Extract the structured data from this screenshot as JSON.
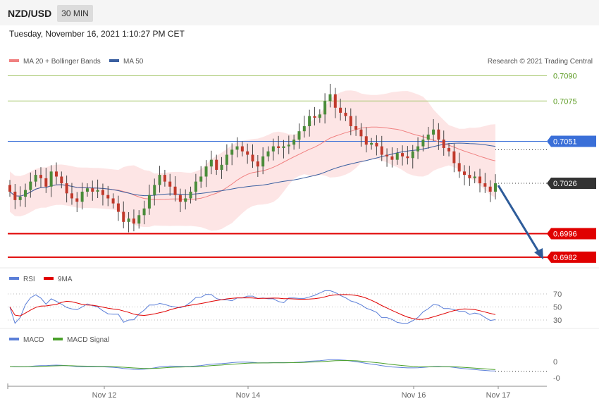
{
  "header": {
    "pair": "NZD/USD",
    "timeframe": "30 MIN",
    "timestamp": "Tuesday, November 16, 2021 1:10:27 PM CET"
  },
  "legend": {
    "ma20": "MA 20 + Bollinger Bands",
    "ma50": "MA 50",
    "credit": "Research © 2021 Trading Central"
  },
  "rsi_legend": {
    "rsi": "RSI",
    "ma": "9MA"
  },
  "macd_legend": {
    "macd": "MACD",
    "signal": "MACD Signal"
  },
  "colors": {
    "up": "#4a8c3a",
    "down": "#c0392b",
    "ma20": "#f08080",
    "band": "#fde0e0",
    "ma50": "#3a5fa0",
    "blue_line": "#3a6fd8",
    "red_line": "#e00000",
    "green_line": "#a8c870"
  },
  "chart_data": {
    "type": "candlestick",
    "x_labels": [
      "Nov 12",
      "Nov 14",
      "Nov 16",
      "Nov 17"
    ],
    "price_axis": {
      "min": 0.6979,
      "max": 0.7094
    },
    "levels": [
      {
        "value": 0.709,
        "label": "0.7090",
        "kind": "resistance-green"
      },
      {
        "value": 0.7075,
        "label": "0.7075",
        "kind": "resistance-green"
      },
      {
        "value": 0.7051,
        "label": "0.7051",
        "kind": "pivot-blue"
      },
      {
        "value": 0.7026,
        "label": "0.7026",
        "kind": "last-price"
      },
      {
        "value": 0.6996,
        "label": "0.6996",
        "kind": "support-red"
      },
      {
        "value": 0.6982,
        "label": "0.6982",
        "kind": "support-red"
      }
    ],
    "closes": [
      0.7021,
      0.7016,
      0.7018,
      0.7022,
      0.7027,
      0.7031,
      0.7029,
      0.7024,
      0.7033,
      0.703,
      0.7026,
      0.702,
      0.7017,
      0.7015,
      0.7021,
      0.7023,
      0.7021,
      0.7022,
      0.7019,
      0.7017,
      0.7014,
      0.7009,
      0.7003,
      0.7005,
      0.7002,
      0.7007,
      0.7011,
      0.7019,
      0.7025,
      0.7031,
      0.7027,
      0.7024,
      0.7019,
      0.7015,
      0.7017,
      0.7021,
      0.7027,
      0.703,
      0.7036,
      0.704,
      0.7034,
      0.7037,
      0.7043,
      0.7046,
      0.7048,
      0.7045,
      0.7043,
      0.7039,
      0.7036,
      0.7042,
      0.7045,
      0.7048,
      0.7047,
      0.7048,
      0.7049,
      0.7052,
      0.7057,
      0.706,
      0.7066,
      0.7065,
      0.7067,
      0.7075,
      0.7079,
      0.7071,
      0.7068,
      0.7066,
      0.706,
      0.7058,
      0.7054,
      0.7049,
      0.705,
      0.7048,
      0.7043,
      0.7042,
      0.704,
      0.7044,
      0.7042,
      0.7041,
      0.7045,
      0.7048,
      0.7052,
      0.7055,
      0.7058,
      0.7052,
      0.7047,
      0.7045,
      0.7038,
      0.7033,
      0.7031,
      0.7029,
      0.703,
      0.7026,
      0.7024,
      0.7021,
      0.7026
    ],
    "rsi_ticks": [
      70,
      50,
      30
    ],
    "macd_ticks": [
      "0",
      "-0"
    ]
  }
}
